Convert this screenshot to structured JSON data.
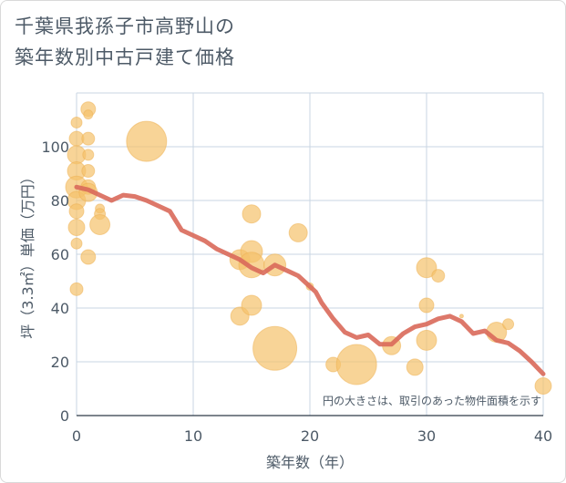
{
  "chart_data": {
    "type": "scatter",
    "title_lines": [
      "千葉県我孫子市高野山の",
      "築年数別中古戸建て価格"
    ],
    "xlabel": "築年数（年）",
    "ylabel": "坪（3.3㎡）単価（万円）",
    "note": "円の大きさは、取引のあった物件面積を示す",
    "xlim": [
      0,
      40
    ],
    "ylim": [
      0,
      120
    ],
    "x_ticks": [
      0,
      10,
      20,
      30,
      40
    ],
    "y_ticks": [
      0,
      20,
      40,
      60,
      80,
      100
    ],
    "grid": true,
    "colors": {
      "bubble": "#f5c26b",
      "trend": "#d9695a",
      "grid": "#c9d6e3",
      "text": "#4d5a67"
    },
    "series": [
      {
        "kind": "bubble",
        "points": [
          {
            "x": 0,
            "y": 109,
            "size": 6
          },
          {
            "x": 0,
            "y": 103,
            "size": 8
          },
          {
            "x": 0,
            "y": 97,
            "size": 10
          },
          {
            "x": 0,
            "y": 91,
            "size": 10
          },
          {
            "x": 0,
            "y": 85,
            "size": 12
          },
          {
            "x": 0,
            "y": 80,
            "size": 10
          },
          {
            "x": 0,
            "y": 76,
            "size": 8
          },
          {
            "x": 0,
            "y": 70,
            "size": 9
          },
          {
            "x": 0,
            "y": 64,
            "size": 6
          },
          {
            "x": 0,
            "y": 47,
            "size": 7
          },
          {
            "x": 1,
            "y": 114,
            "size": 8
          },
          {
            "x": 1,
            "y": 112,
            "size": 5
          },
          {
            "x": 1,
            "y": 103,
            "size": 7
          },
          {
            "x": 1,
            "y": 97,
            "size": 6
          },
          {
            "x": 1,
            "y": 91,
            "size": 7
          },
          {
            "x": 1,
            "y": 85,
            "size": 8
          },
          {
            "x": 1,
            "y": 83,
            "size": 10
          },
          {
            "x": 1,
            "y": 59,
            "size": 8
          },
          {
            "x": 2,
            "y": 77,
            "size": 5
          },
          {
            "x": 2,
            "y": 75,
            "size": 6
          },
          {
            "x": 2,
            "y": 71,
            "size": 11
          },
          {
            "x": 6,
            "y": 102,
            "size": 22
          },
          {
            "x": 14,
            "y": 58,
            "size": 11
          },
          {
            "x": 14,
            "y": 37,
            "size": 10
          },
          {
            "x": 15,
            "y": 75,
            "size": 10
          },
          {
            "x": 15,
            "y": 61,
            "size": 12
          },
          {
            "x": 15,
            "y": 56,
            "size": 14
          },
          {
            "x": 15,
            "y": 41,
            "size": 11
          },
          {
            "x": 17,
            "y": 56,
            "size": 12
          },
          {
            "x": 17,
            "y": 25,
            "size": 24
          },
          {
            "x": 19,
            "y": 68,
            "size": 10
          },
          {
            "x": 20,
            "y": 48,
            "size": 4
          },
          {
            "x": 22,
            "y": 19,
            "size": 8
          },
          {
            "x": 24,
            "y": 19,
            "size": 22
          },
          {
            "x": 27,
            "y": 26,
            "size": 10
          },
          {
            "x": 29,
            "y": 18,
            "size": 9
          },
          {
            "x": 30,
            "y": 55,
            "size": 11
          },
          {
            "x": 30,
            "y": 41,
            "size": 8
          },
          {
            "x": 30,
            "y": 28,
            "size": 11
          },
          {
            "x": 31,
            "y": 52,
            "size": 7
          },
          {
            "x": 33,
            "y": 37,
            "size": 2
          },
          {
            "x": 36,
            "y": 31,
            "size": 11
          },
          {
            "x": 37,
            "y": 34,
            "size": 6
          },
          {
            "x": 40,
            "y": 11,
            "size": 9
          }
        ]
      },
      {
        "kind": "trend",
        "points": [
          {
            "x": 0,
            "y": 85
          },
          {
            "x": 1,
            "y": 84
          },
          {
            "x": 2,
            "y": 82
          },
          {
            "x": 3,
            "y": 80
          },
          {
            "x": 4,
            "y": 82
          },
          {
            "x": 5,
            "y": 81.5
          },
          {
            "x": 6,
            "y": 80
          },
          {
            "x": 7,
            "y": 78
          },
          {
            "x": 8,
            "y": 76
          },
          {
            "x": 9,
            "y": 69
          },
          {
            "x": 10,
            "y": 67
          },
          {
            "x": 11,
            "y": 65
          },
          {
            "x": 12,
            "y": 62
          },
          {
            "x": 13,
            "y": 60
          },
          {
            "x": 14,
            "y": 58
          },
          {
            "x": 15,
            "y": 55
          },
          {
            "x": 16,
            "y": 53
          },
          {
            "x": 17,
            "y": 56
          },
          {
            "x": 18,
            "y": 54
          },
          {
            "x": 19,
            "y": 52
          },
          {
            "x": 20,
            "y": 48
          },
          {
            "x": 20.5,
            "y": 46
          },
          {
            "x": 21,
            "y": 42
          },
          {
            "x": 22,
            "y": 36
          },
          {
            "x": 23,
            "y": 31
          },
          {
            "x": 24,
            "y": 29
          },
          {
            "x": 25,
            "y": 30
          },
          {
            "x": 26,
            "y": 26.5
          },
          {
            "x": 27,
            "y": 26.5
          },
          {
            "x": 28,
            "y": 30.5
          },
          {
            "x": 29,
            "y": 33
          },
          {
            "x": 30,
            "y": 34
          },
          {
            "x": 31,
            "y": 36
          },
          {
            "x": 32,
            "y": 37
          },
          {
            "x": 33,
            "y": 35
          },
          {
            "x": 34,
            "y": 30.5
          },
          {
            "x": 35,
            "y": 31.5
          },
          {
            "x": 36,
            "y": 28
          },
          {
            "x": 37,
            "y": 27
          },
          {
            "x": 38,
            "y": 24
          },
          {
            "x": 39,
            "y": 20
          },
          {
            "x": 40,
            "y": 15.5
          }
        ]
      }
    ]
  }
}
